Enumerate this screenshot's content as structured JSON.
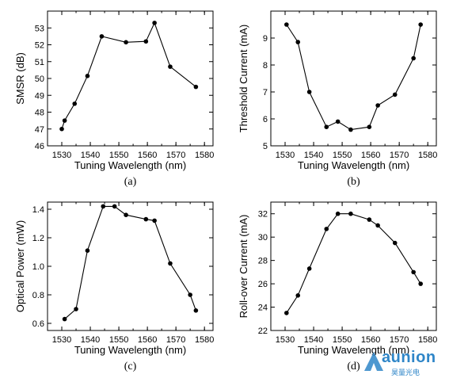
{
  "chart_data": [
    {
      "id": "a",
      "type": "line",
      "panel_label": "(a)",
      "xlabel": "Tuning Wavelength (nm)",
      "ylabel": "SMSR (dB)",
      "xlim": [
        1525,
        1583
      ],
      "ylim": [
        46,
        54
      ],
      "xticks": [
        1530,
        1540,
        1550,
        1560,
        1570,
        1580
      ],
      "yticks": [
        46,
        47,
        48,
        49,
        50,
        51,
        52,
        53
      ],
      "x": [
        1530,
        1531,
        1534.5,
        1539,
        1544,
        1552.5,
        1559.5,
        1562.5,
        1568,
        1577
      ],
      "y": [
        47.0,
        47.5,
        48.5,
        50.15,
        52.5,
        52.15,
        52.2,
        53.3,
        50.7,
        49.5
      ],
      "marker": "circle",
      "grid": false
    },
    {
      "id": "b",
      "type": "line",
      "panel_label": "(b)",
      "xlabel": "Tuning Wavelength (nm)",
      "ylabel": "Threshold Current (mA)",
      "xlim": [
        1525,
        1583
      ],
      "ylim": [
        5,
        10
      ],
      "xticks": [
        1530,
        1540,
        1550,
        1560,
        1570,
        1580
      ],
      "yticks": [
        5,
        6,
        7,
        8,
        9
      ],
      "x": [
        1530.5,
        1534.5,
        1538.5,
        1544.5,
        1548.5,
        1553,
        1559.5,
        1562.5,
        1568.5,
        1575,
        1577.5
      ],
      "y": [
        9.5,
        8.85,
        7.0,
        5.7,
        5.9,
        5.6,
        5.7,
        6.5,
        6.9,
        8.25,
        9.5
      ],
      "marker": "circle",
      "grid": false
    },
    {
      "id": "c",
      "type": "line",
      "panel_label": "(c)",
      "xlabel": "Tuning Wavelength (nm)",
      "ylabel": "Optical Power (mW)",
      "xlim": [
        1525,
        1583
      ],
      "ylim": [
        0.55,
        1.45
      ],
      "xticks": [
        1530,
        1540,
        1550,
        1560,
        1570,
        1580
      ],
      "yticks": [
        0.6,
        0.8,
        1.0,
        1.2,
        1.4
      ],
      "x": [
        1531,
        1535,
        1539,
        1544.5,
        1548.5,
        1552.5,
        1559.5,
        1562.5,
        1568,
        1575,
        1577
      ],
      "y": [
        0.63,
        0.7,
        1.11,
        1.42,
        1.42,
        1.36,
        1.33,
        1.32,
        1.02,
        0.8,
        0.69
      ],
      "marker": "circle",
      "grid": false
    },
    {
      "id": "d",
      "type": "line",
      "panel_label": "(d)",
      "xlabel": "Tuning Wavelength (nm)",
      "ylabel": "Roll-over Current (mA)",
      "xlim": [
        1525,
        1583
      ],
      "ylim": [
        22,
        33
      ],
      "xticks": [
        1530,
        1540,
        1550,
        1560,
        1570,
        1580
      ],
      "yticks": [
        22,
        24,
        26,
        28,
        30,
        32
      ],
      "x": [
        1530.5,
        1534.5,
        1538.5,
        1544.5,
        1548.5,
        1553,
        1559.5,
        1562.5,
        1568.5,
        1575,
        1577.5
      ],
      "y": [
        23.5,
        25.0,
        27.3,
        30.7,
        32.0,
        32.0,
        31.5,
        31.0,
        29.5,
        27.0,
        26.0
      ],
      "marker": "circle",
      "grid": false
    }
  ],
  "watermark": {
    "main": "aunion",
    "sub": "昊量光电",
    "color": "#2f86c8"
  }
}
